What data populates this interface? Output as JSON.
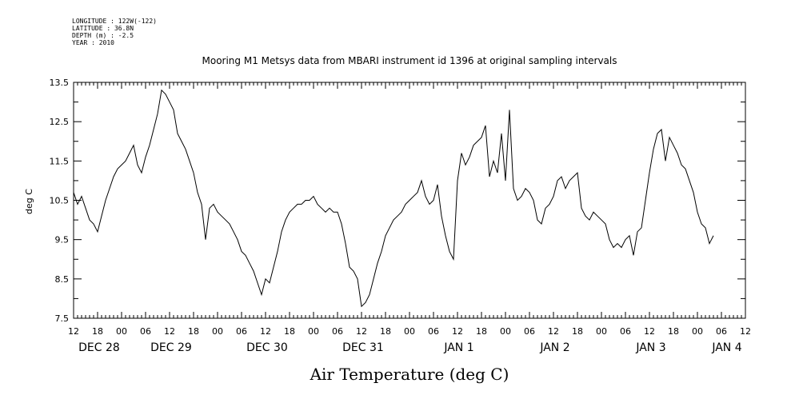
{
  "metadata_lines": [
    "LONGITUDE : 122W(-122)",
    "LATITUDE : 36.8N",
    "DEPTH (m) : -2.5",
    "YEAR : 2010"
  ],
  "chart_data": {
    "type": "line",
    "title": "Mooring M1 Metsys data from MBARI instrument id 1396 at original sampling intervals",
    "xlabel": "Air Temperature (deg C)",
    "ylabel": "deg C",
    "ylim": [
      7.5,
      13.5
    ],
    "yticks": [
      "13.5",
      "12.5",
      "11.5",
      "10.5",
      "9.5",
      "8.5",
      "7.5"
    ],
    "xlim_hours": [
      0,
      168
    ],
    "x_tick_labels": [
      "12",
      "18",
      "00",
      "06",
      "12",
      "18",
      "00",
      "06",
      "12",
      "18",
      "00",
      "06",
      "12",
      "18",
      "00",
      "06",
      "12",
      "18",
      "00",
      "06",
      "12",
      "18",
      "00",
      "06",
      "12",
      "18",
      "00",
      "06",
      "12"
    ],
    "day_labels": [
      {
        "label": "DEC 28",
        "hour": 0
      },
      {
        "label": "DEC 29",
        "hour": 18
      },
      {
        "label": "DEC 30",
        "hour": 42
      },
      {
        "label": "DEC 31",
        "hour": 66
      },
      {
        "label": "JAN  1",
        "hour": 90
      },
      {
        "label": "JAN  2",
        "hour": 114
      },
      {
        "label": "JAN  3",
        "hour": 138
      },
      {
        "label": "JAN  4",
        "hour": 157
      }
    ],
    "grid": false,
    "legend": "none",
    "series": [
      {
        "color": "#000000",
        "points": [
          [
            0,
            10.7
          ],
          [
            1,
            10.4
          ],
          [
            2,
            10.6
          ],
          [
            3,
            10.3
          ],
          [
            4,
            10.0
          ],
          [
            5,
            9.9
          ],
          [
            6,
            9.7
          ],
          [
            7,
            10.1
          ],
          [
            8,
            10.5
          ],
          [
            9,
            10.8
          ],
          [
            10,
            11.1
          ],
          [
            11,
            11.3
          ],
          [
            12,
            11.4
          ],
          [
            13,
            11.5
          ],
          [
            14,
            11.7
          ],
          [
            15,
            11.9
          ],
          [
            16,
            11.4
          ],
          [
            17,
            11.2
          ],
          [
            18,
            11.6
          ],
          [
            19,
            11.9
          ],
          [
            20,
            12.3
          ],
          [
            21,
            12.7
          ],
          [
            22,
            13.3
          ],
          [
            23,
            13.2
          ],
          [
            24,
            13.0
          ],
          [
            25,
            12.8
          ],
          [
            26,
            12.2
          ],
          [
            27,
            12.0
          ],
          [
            28,
            11.8
          ],
          [
            29,
            11.5
          ],
          [
            30,
            11.2
          ],
          [
            31,
            10.7
          ],
          [
            32,
            10.4
          ],
          [
            33,
            9.5
          ],
          [
            34,
            10.3
          ],
          [
            35,
            10.4
          ],
          [
            36,
            10.2
          ],
          [
            37,
            10.1
          ],
          [
            38,
            10.0
          ],
          [
            39,
            9.9
          ],
          [
            40,
            9.7
          ],
          [
            41,
            9.5
          ],
          [
            42,
            9.2
          ],
          [
            43,
            9.1
          ],
          [
            44,
            8.9
          ],
          [
            45,
            8.7
          ],
          [
            46,
            8.4
          ],
          [
            47,
            8.1
          ],
          [
            48,
            8.5
          ],
          [
            49,
            8.4
          ],
          [
            50,
            8.8
          ],
          [
            51,
            9.2
          ],
          [
            52,
            9.7
          ],
          [
            53,
            10.0
          ],
          [
            54,
            10.2
          ],
          [
            55,
            10.3
          ],
          [
            56,
            10.4
          ],
          [
            57,
            10.4
          ],
          [
            58,
            10.5
          ],
          [
            59,
            10.5
          ],
          [
            60,
            10.6
          ],
          [
            61,
            10.4
          ],
          [
            62,
            10.3
          ],
          [
            63,
            10.2
          ],
          [
            64,
            10.3
          ],
          [
            65,
            10.2
          ],
          [
            66,
            10.2
          ],
          [
            67,
            9.9
          ],
          [
            68,
            9.4
          ],
          [
            69,
            8.8
          ],
          [
            70,
            8.7
          ],
          [
            71,
            8.5
          ],
          [
            72,
            7.8
          ],
          [
            73,
            7.9
          ],
          [
            74,
            8.1
          ],
          [
            75,
            8.5
          ],
          [
            76,
            8.9
          ],
          [
            77,
            9.2
          ],
          [
            78,
            9.6
          ],
          [
            79,
            9.8
          ],
          [
            80,
            10.0
          ],
          [
            81,
            10.1
          ],
          [
            82,
            10.2
          ],
          [
            83,
            10.4
          ],
          [
            84,
            10.5
          ],
          [
            85,
            10.6
          ],
          [
            86,
            10.7
          ],
          [
            87,
            11.0
          ],
          [
            88,
            10.6
          ],
          [
            89,
            10.4
          ],
          [
            90,
            10.5
          ],
          [
            91,
            10.9
          ],
          [
            92,
            10.1
          ],
          [
            93,
            9.6
          ],
          [
            94,
            9.2
          ],
          [
            95,
            9.0
          ],
          [
            96,
            11.0
          ],
          [
            97,
            11.7
          ],
          [
            98,
            11.4
          ],
          [
            99,
            11.6
          ],
          [
            100,
            11.9
          ],
          [
            101,
            12.0
          ],
          [
            102,
            12.1
          ],
          [
            103,
            12.4
          ],
          [
            104,
            11.1
          ],
          [
            105,
            11.5
          ],
          [
            106,
            11.2
          ],
          [
            107,
            12.2
          ],
          [
            108,
            11.0
          ],
          [
            109,
            12.8
          ],
          [
            110,
            10.8
          ],
          [
            111,
            10.5
          ],
          [
            112,
            10.6
          ],
          [
            113,
            10.8
          ],
          [
            114,
            10.7
          ],
          [
            115,
            10.5
          ],
          [
            116,
            10.0
          ],
          [
            117,
            9.9
          ],
          [
            118,
            10.3
          ],
          [
            119,
            10.4
          ],
          [
            120,
            10.6
          ],
          [
            121,
            11.0
          ],
          [
            122,
            11.1
          ],
          [
            123,
            10.8
          ],
          [
            124,
            11.0
          ],
          [
            125,
            11.1
          ],
          [
            126,
            11.2
          ],
          [
            127,
            10.3
          ],
          [
            128,
            10.1
          ],
          [
            129,
            10.0
          ],
          [
            130,
            10.2
          ],
          [
            131,
            10.1
          ],
          [
            132,
            10.0
          ],
          [
            133,
            9.9
          ],
          [
            134,
            9.5
          ],
          [
            135,
            9.3
          ],
          [
            136,
            9.4
          ],
          [
            137,
            9.3
          ],
          [
            138,
            9.5
          ],
          [
            139,
            9.6
          ],
          [
            140,
            9.1
          ],
          [
            141,
            9.7
          ],
          [
            142,
            9.8
          ],
          [
            143,
            10.5
          ],
          [
            144,
            11.2
          ],
          [
            145,
            11.8
          ],
          [
            146,
            12.2
          ],
          [
            147,
            12.3
          ],
          [
            148,
            11.5
          ],
          [
            149,
            12.1
          ],
          [
            150,
            11.9
          ],
          [
            151,
            11.7
          ],
          [
            152,
            11.4
          ],
          [
            153,
            11.3
          ],
          [
            154,
            11.0
          ],
          [
            155,
            10.7
          ],
          [
            156,
            10.2
          ],
          [
            157,
            9.9
          ],
          [
            158,
            9.8
          ],
          [
            159,
            9.4
          ],
          [
            160,
            9.6
          ]
        ]
      }
    ]
  }
}
